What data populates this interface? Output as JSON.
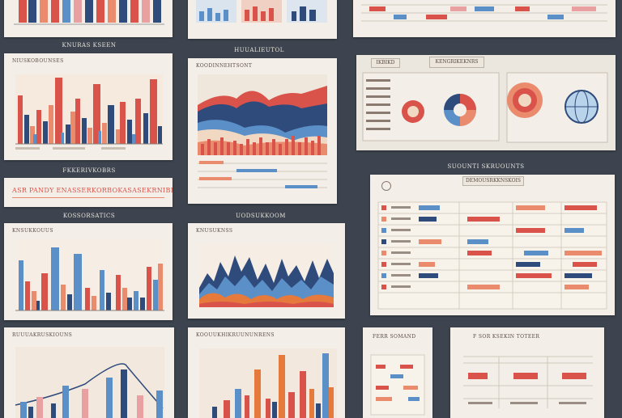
{
  "colors": {
    "bg": "#3d444f",
    "paper": "#f3efe8",
    "red": "#d9534a",
    "coral": "#ea8b6e",
    "navy": "#2f4b7c",
    "blue": "#5b8fc7",
    "orange": "#e57a3c",
    "pink": "#e9a0a0",
    "cream": "#f1d8c2",
    "teal": "#6fa0c0"
  },
  "icons": [
    "chart-tile-icon",
    "pie-wheel-icon",
    "target-icon",
    "globe-icon",
    "info-icon"
  ],
  "texts": {
    "cap_row2_left": "KNURAS KSEEN",
    "cap_row2_mid": "HUUALIEUTOL",
    "card_bar1_title": "NIUSKOBOUNSES",
    "card_area_title": "KOODINNEHTSONT",
    "tab_mr1": "IKBIKD",
    "tab_mr2": "KENGRIKEKNRS",
    "cap_row3_left": "FKKERIVKOBRS",
    "banner": "ASR PANDY ENASSERKORBOKASASEKRNIBES",
    "cap_row4_left": "KOSSORSATICS",
    "cap_row4_mid": "UODSUKKOOM",
    "cap_right3": "SUOUNTI SKRUOUNTS",
    "card_table_title": "DEMOUSRKKNSKOIS",
    "card_bar2_title": "KNSUKKOUUS",
    "card_mtn_title": "KNUSUKNSS",
    "card_bot1_title": "RUUUAKRUSKIOUNS",
    "card_bot2_title": "KOOUUKHIKRUUNUNRENS",
    "card_bot3_title": "FERR SOMAND",
    "card_bot4_title": "F SOR KSEKIN TOTEER"
  }
}
